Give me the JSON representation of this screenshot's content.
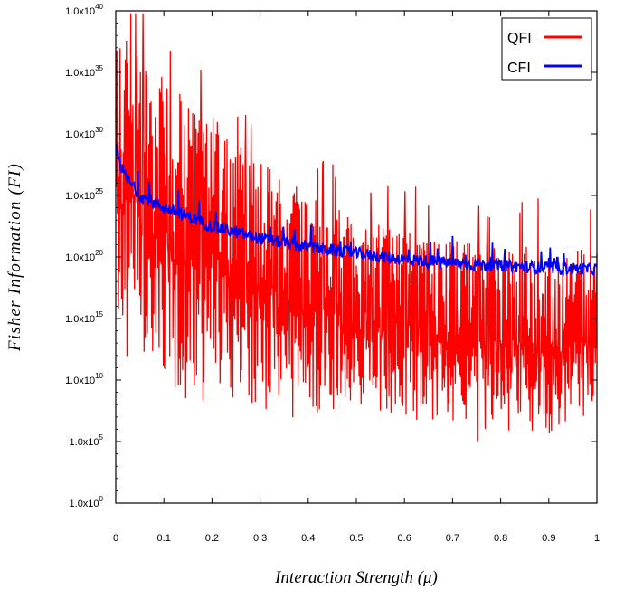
{
  "chart_data": {
    "type": "line",
    "title": "",
    "xlabel": "Interaction Strength (μ)",
    "ylabel": "Fisher Information (FI)",
    "xlim": [
      0,
      1
    ],
    "ylim_log10": [
      0,
      40
    ],
    "y_scale": "log",
    "x_ticks": [
      "0",
      "0.1",
      "0.2",
      "0.3",
      "0.4",
      "0.5",
      "0.6",
      "0.7",
      "0.8",
      "0.9",
      "1"
    ],
    "y_ticks": [
      {
        "mantissa": "1.0x10",
        "exp": "0"
      },
      {
        "mantissa": "1.0x10",
        "exp": "5"
      },
      {
        "mantissa": "1.0x10",
        "exp": "10"
      },
      {
        "mantissa": "1.0x10",
        "exp": "15"
      },
      {
        "mantissa": "1.0x10",
        "exp": "20"
      },
      {
        "mantissa": "1.0x10",
        "exp": "25"
      },
      {
        "mantissa": "1.0x10",
        "exp": "30"
      },
      {
        "mantissa": "1.0x10",
        "exp": "35"
      },
      {
        "mantissa": "1.0x10",
        "exp": "40"
      }
    ],
    "legend_position": "top-right",
    "series": [
      {
        "name": "QFI",
        "color": "#ff0000",
        "description_log10": "highly oscillatory; peaks fall from ~1e39 at μ≈0 to ~1e22 at μ≈1, troughs roughly 1e5–1e16",
        "x": [
          0.0,
          0.02,
          0.05,
          0.08,
          0.1,
          0.13,
          0.15,
          0.2,
          0.25,
          0.3,
          0.35,
          0.4,
          0.5,
          0.6,
          0.7,
          0.8,
          0.9,
          1.0
        ],
        "upper_log10": [
          38.5,
          38.8,
          37.5,
          35.5,
          35.0,
          34.0,
          33.0,
          32.0,
          29.5,
          28.0,
          27.0,
          25.0,
          23.5,
          22.5,
          21.5,
          21.0,
          21.0,
          21.0
        ],
        "lower_log10": [
          13.0,
          12.0,
          11.0,
          10.0,
          9.5,
          8.5,
          7.5,
          8.5,
          8.0,
          8.5,
          8.0,
          7.0,
          8.0,
          7.0,
          6.0,
          6.0,
          5.0,
          7.5
        ]
      },
      {
        "name": "CFI",
        "color": "#0000ff",
        "description_log10": "smoothly decreasing with noise",
        "x": [
          0.0,
          0.01,
          0.02,
          0.05,
          0.1,
          0.15,
          0.2,
          0.3,
          0.4,
          0.5,
          0.6,
          0.7,
          0.8,
          0.9,
          1.0
        ],
        "y_log10": [
          29.0,
          27.5,
          26.5,
          25.0,
          24.0,
          23.3,
          22.5,
          21.5,
          20.8,
          20.3,
          19.8,
          19.5,
          19.3,
          19.1,
          19.0
        ]
      }
    ]
  }
}
